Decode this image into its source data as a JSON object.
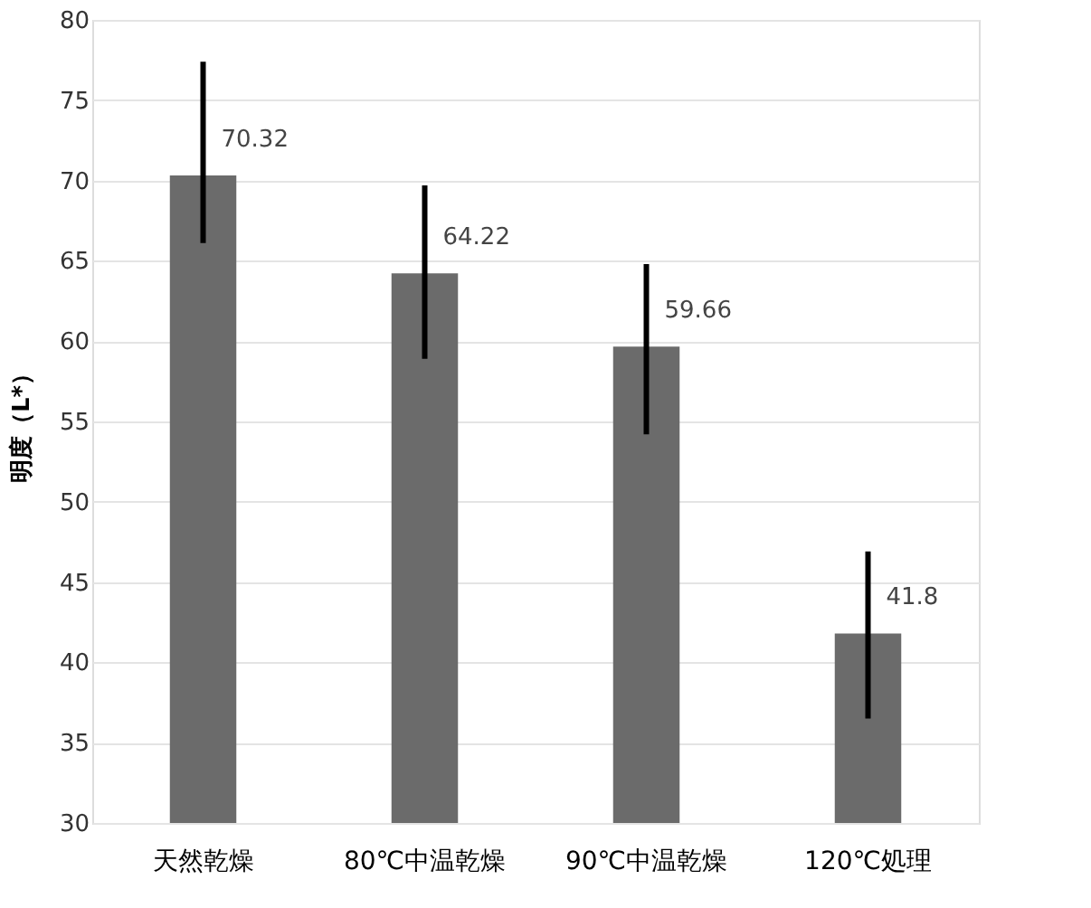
{
  "chart_data": {
    "type": "bar",
    "ylabel": "明度（L*）",
    "categories": [
      "天然乾燥",
      "80℃中温乾燥",
      "90℃中温乾燥",
      "120℃処理"
    ],
    "values": [
      70.32,
      64.22,
      59.66,
      41.8
    ],
    "errors": [
      [
        66.1,
        77.4
      ],
      [
        58.9,
        69.7
      ],
      [
        54.2,
        64.8
      ],
      [
        36.5,
        46.9
      ]
    ],
    "color": "#6b6b6b",
    "ylim": [
      30,
      80
    ],
    "yticks": [
      30,
      35,
      40,
      45,
      50,
      55,
      60,
      65,
      70,
      75,
      80
    ],
    "grid": "y",
    "data_labels": true
  }
}
